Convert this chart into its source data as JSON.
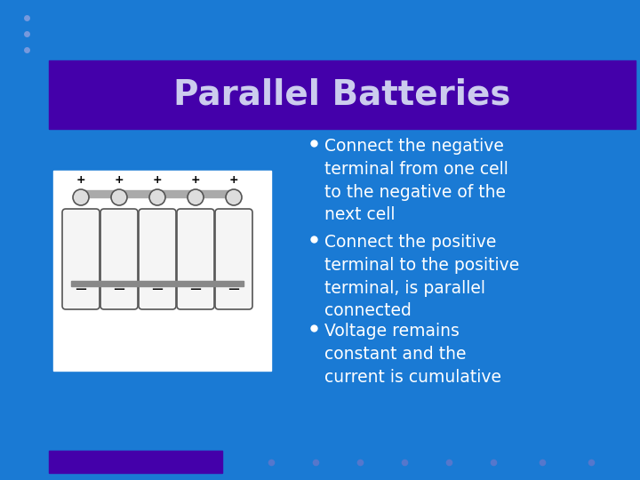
{
  "bg_color": "#1a7ad4",
  "title_bg_color": "#4400aa",
  "title_text": "Parallel Batteries",
  "title_color": "#ccccee",
  "bullet_points": [
    "Connect the negative\nterminal from one cell\nto the negative of the\nnext cell",
    "Connect the positive\nterminal to the positive\nterminal, is parallel\nconnected",
    "Voltage remains\nconstant and the\ncurrent is cumulative"
  ],
  "bullet_color": "#ffffff",
  "bullet_fontsize": 13.5,
  "title_fontsize": 28,
  "dots_color_top": "#7799dd",
  "dots_color_bottom": "#5577cc",
  "footer_bar_color": "#4400aa"
}
